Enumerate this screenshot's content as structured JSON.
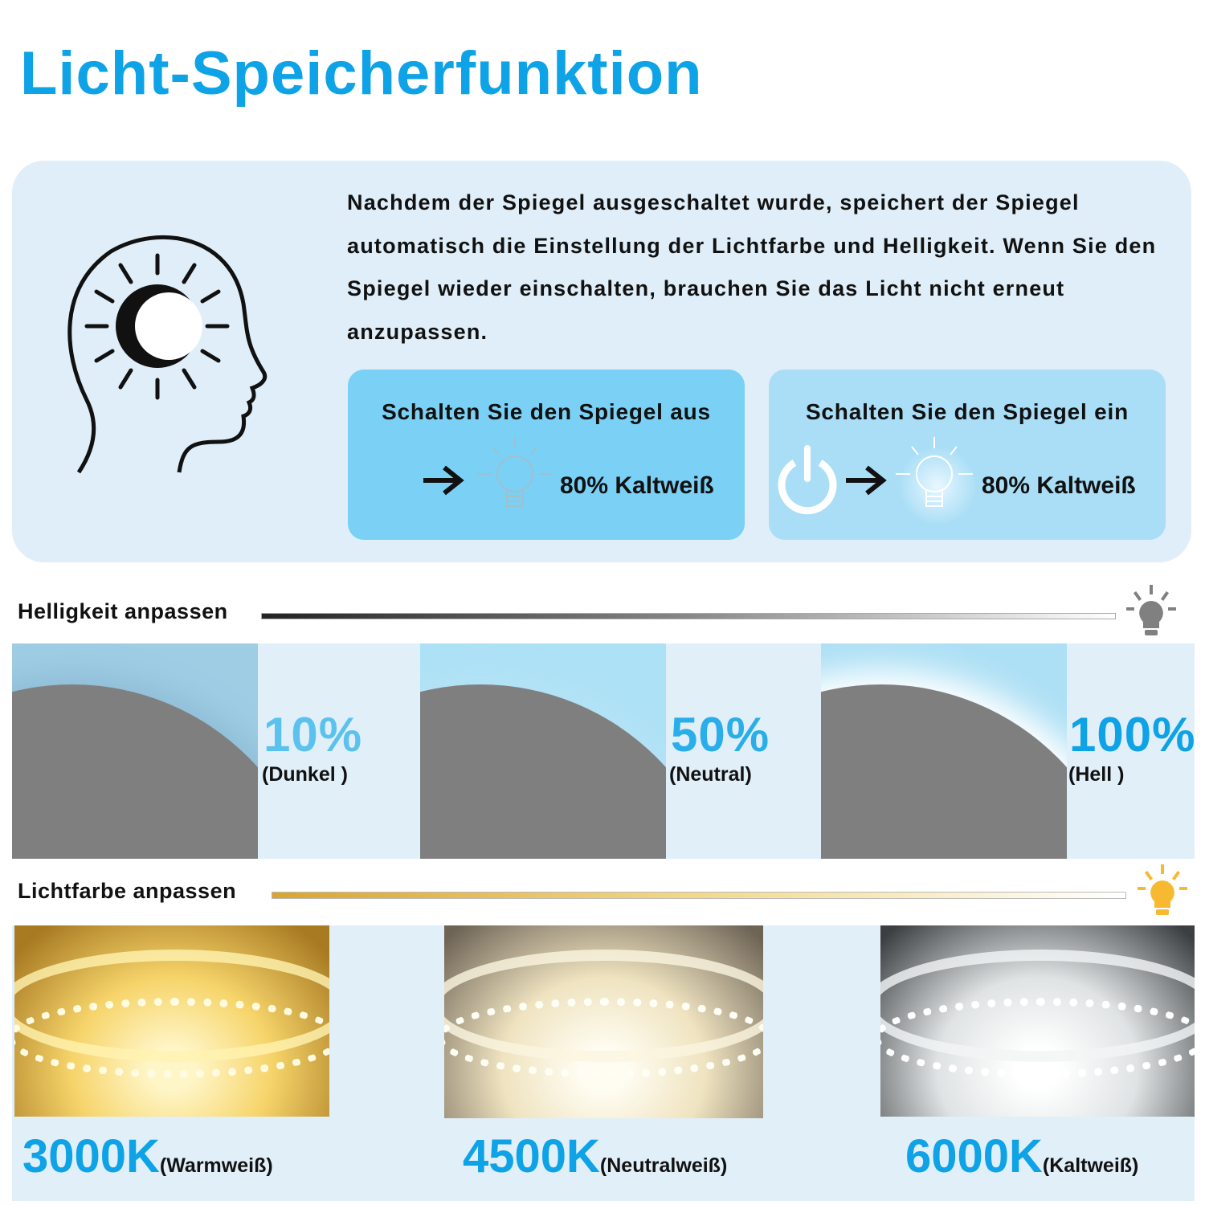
{
  "title": "Licht-Speicherfunktion",
  "intro": {
    "text": "Nachdem der Spiegel ausgeschaltet wurde, speichert der Spiegel automatisch die Einstellung der Lichtfarbe und Helligkeit. Wenn Sie den Spiegel wieder einschalten, brauchen Sie das Licht nicht erneut anzupassen."
  },
  "off_box": {
    "title": "Schalten Sie den Spiegel aus",
    "value": "80% Kaltweiß"
  },
  "on_box": {
    "title": "Schalten Sie den Spiegel ein",
    "value": "80% Kaltweiß"
  },
  "brightness": {
    "heading": "Helligkeit anpassen",
    "levels": [
      {
        "percent": "10%",
        "label": "(Dunkel )",
        "color": "#5bc2ef"
      },
      {
        "percent": "50%",
        "label": "(Neutral)",
        "color": "#2aaeea"
      },
      {
        "percent": "100%",
        "label": "(Hell )",
        "color": "#0ea2e6"
      }
    ]
  },
  "color": {
    "heading": "Lichtfarbe anpassen",
    "temps": [
      {
        "kelvin": "3000K",
        "label": "(Warmweiß)"
      },
      {
        "kelvin": "4500K",
        "label": "(Neutralweiß)"
      },
      {
        "kelvin": "6000K",
        "label": "(Kaltweiß)"
      }
    ]
  },
  "colors": {
    "accent": "#0ea2e6",
    "panel": "#dfeef8"
  }
}
